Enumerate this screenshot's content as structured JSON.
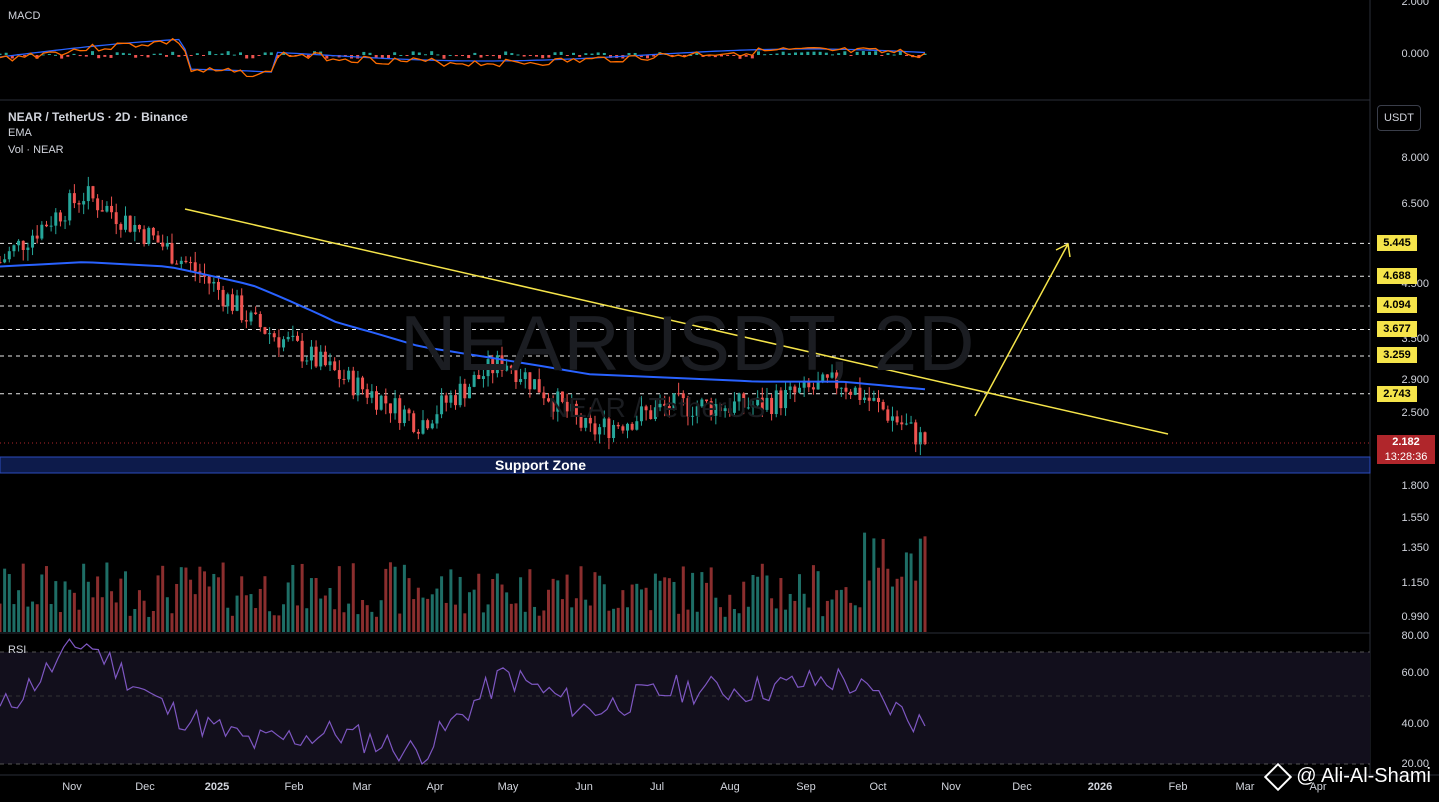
{
  "symbol": {
    "title": "NEAR / TetherUS · 2D · Binance",
    "indicator_ema": "EMA",
    "indicator_vol": "Vol · NEAR",
    "watermark": "NEARUSDT, 2D",
    "watermark_sub": "NEAR / TetherUS"
  },
  "panes": {
    "macd": "MACD",
    "rsi": "RSI"
  },
  "currency_button": "USDT",
  "price_axis": [
    "8.000",
    "6.500",
    "4.500",
    "3.500",
    "2.900",
    "2.500",
    "1.800",
    "1.550",
    "1.350",
    "1.150",
    "0.990"
  ],
  "macd_axis": [
    "2.000",
    "0.000"
  ],
  "rsi_axis": [
    "80.00",
    "60.00",
    "40.00",
    "20.00"
  ],
  "levels": [
    "5.445",
    "4.688",
    "4.094",
    "3.677",
    "3.259",
    "2.743"
  ],
  "current_price": "2.182",
  "countdown": "13:28:36",
  "support_label": "Support Zone",
  "time_axis": [
    "Nov",
    "Dec",
    "2025",
    "Feb",
    "Mar",
    "Apr",
    "May",
    "Jun",
    "Jul",
    "Aug",
    "Sep",
    "Oct",
    "Nov",
    "Dec",
    "2026",
    "Feb",
    "Mar",
    "Apr"
  ],
  "branding": "@ Ali-Al-Shami",
  "colors": {
    "up": "#26a69a",
    "down": "#ef5350",
    "ema": "#2962ff",
    "trend": "#f5e44a",
    "rsi": "#7e57c2",
    "macd_line": "#2962ff",
    "signal_line": "#ff6d00",
    "support": "#1e3a8a"
  },
  "chart_data": {
    "type": "line",
    "title": "NEAR / TetherUS · 2D · Binance",
    "x": [
      "Nov",
      "Dec",
      "2025",
      "Feb",
      "Mar",
      "Apr",
      "May",
      "Jun",
      "Jul",
      "Aug",
      "Sep",
      "Oct"
    ],
    "series": [
      {
        "name": "NEAR",
        "values": [
          5.0,
          6.8,
          5.3,
          3.8,
          3.0,
          2.4,
          3.2,
          2.3,
          2.6,
          2.6,
          2.9,
          2.2
        ]
      },
      {
        "name": "EMA",
        "values": [
          4.9,
          5.0,
          4.9,
          4.5,
          3.8,
          3.4,
          3.2,
          3.0,
          2.95,
          2.9,
          2.9,
          2.8
        ]
      }
    ],
    "rsi": [
      45,
      78,
      45,
      30,
      35,
      25,
      62,
      45,
      55,
      55,
      60,
      38
    ],
    "levels": [
      5.445,
      4.688,
      4.094,
      3.677,
      3.259,
      2.743
    ],
    "support_zone": [
      1.95,
      2.05
    ],
    "current": 2.182,
    "ylim": [
      0.9,
      8.5
    ],
    "log_scale": true
  }
}
